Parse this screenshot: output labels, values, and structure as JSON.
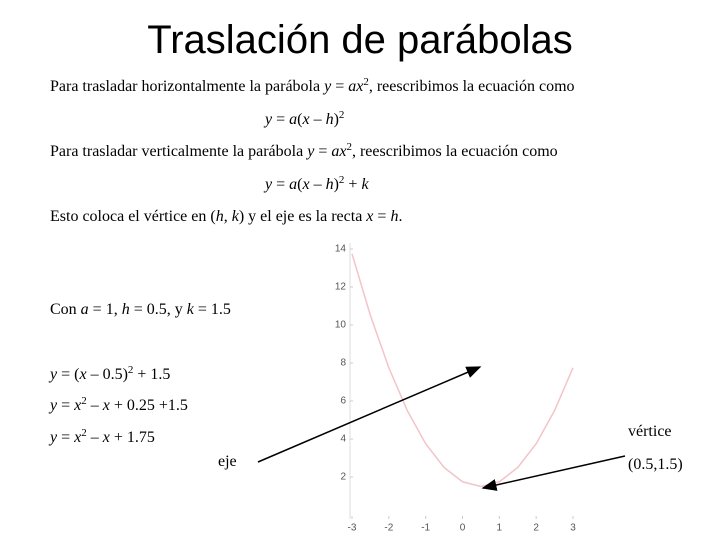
{
  "title": "Traslación de parábolas",
  "p1": [
    "Para trasladar horizontalmente la parábola ",
    "y",
    " = ",
    "ax",
    "2",
    ", reescribimos la ecuación como"
  ],
  "eq1": [
    "y",
    " = ",
    "a",
    "(",
    "x",
    " – ",
    "h",
    ")",
    "2"
  ],
  "p2": [
    "Para trasladar verticalmente la parábola ",
    "y",
    " = ",
    "ax",
    "2",
    ", reescribimos la ecuación como"
  ],
  "eq2": [
    "y",
    " = ",
    "a",
    "(",
    "x",
    " – ",
    "h",
    ")",
    "2",
    " + ",
    "k"
  ],
  "p3": [
    "Esto coloca el vértice en (",
    "h",
    ", ",
    "k",
    ") y el eje es la recta ",
    "x",
    " = ",
    "h",
    "."
  ],
  "p4": [
    "Con ",
    "a",
    " = 1, ",
    "h",
    " = 0.5, y ",
    "k",
    " = 1.5"
  ],
  "e1": [
    "y",
    " = (",
    "x",
    " – 0.5)",
    "2",
    " + 1.5"
  ],
  "e2": [
    "y",
    " = ",
    "x",
    "2",
    " – ",
    "x",
    " + 0.25 +1.5"
  ],
  "e3": [
    "y",
    " = ",
    "x",
    "2",
    " – ",
    "x",
    " + 1.75"
  ],
  "vertex_label": "vértice",
  "vertex_point": "(0.5,1.5)",
  "axis_label": "eje",
  "chart_data": {
    "type": "line",
    "x": [
      -3,
      -2.5,
      -2,
      -1.5,
      -1,
      -0.5,
      0,
      0.5,
      1,
      1.5,
      2,
      2.5,
      3
    ],
    "values": [
      13.75,
      10.5,
      7.75,
      5.5,
      3.75,
      2.5,
      1.75,
      1.5,
      1.75,
      2.5,
      3.75,
      5.5,
      7.75
    ],
    "color": "#f2c4c8",
    "xlim": [
      -3,
      3
    ],
    "ylim": [
      0,
      14
    ],
    "xticks": [
      -3,
      -2,
      -1,
      0,
      1,
      2,
      3
    ],
    "yticks": [
      2,
      4,
      6,
      8,
      10,
      12,
      14
    ]
  }
}
